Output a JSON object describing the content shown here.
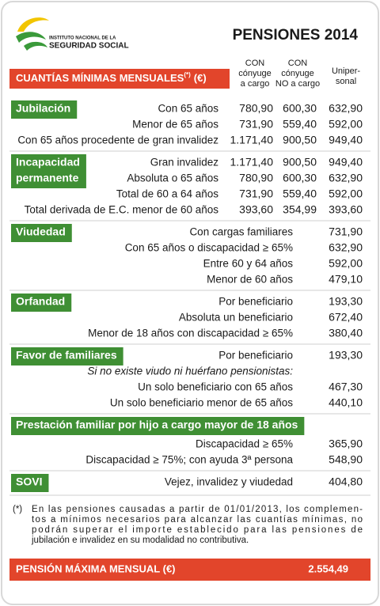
{
  "header": {
    "logo_line1": "INSTITUTO NACIONAL DE LA",
    "logo_line2": "SEGURIDAD SOCIAL",
    "title": "PENSIONES 2014"
  },
  "table_header": {
    "label": "CUANTÍAS MÍNIMAS MENSUALES",
    "note_ref": "(*)",
    "unit": "(€)",
    "columns": [
      [
        "CON",
        "cónyuge",
        "a cargo"
      ],
      [
        "CON",
        "cónyuge",
        "NO a cargo"
      ],
      [
        "Uniper-",
        "sonal"
      ]
    ]
  },
  "sections": [
    {
      "title": [
        "Jubilación"
      ],
      "rows": [
        {
          "label": "Con 65 años",
          "values": [
            "780,90",
            "600,30",
            "632,90"
          ]
        },
        {
          "label": "Menor de 65 años",
          "values": [
            "731,90",
            "559,40",
            "592,00"
          ]
        },
        {
          "label": "Con 65 años procedente de gran invalidez",
          "values": [
            "1.171,40",
            "900,50",
            "949,40"
          ]
        }
      ]
    },
    {
      "title": [
        "Incapacidad",
        "permanente"
      ],
      "rows": [
        {
          "label": "Gran invalidez",
          "values": [
            "1.171,40",
            "900,50",
            "949,40"
          ]
        },
        {
          "label": "Absoluta o 65 años",
          "values": [
            "780,90",
            "600,30",
            "632,90"
          ]
        },
        {
          "label": "Total de 60 a 64 años",
          "values": [
            "731,90",
            "559,40",
            "592,00"
          ]
        },
        {
          "label": "Total derivada de E.C. menor de 60 años",
          "values": [
            "393,60",
            "354,99",
            "393,60"
          ]
        }
      ]
    },
    {
      "title": [
        "Viudedad"
      ],
      "rows": [
        {
          "label": "Con cargas familiares",
          "values": [
            "731,90"
          ]
        },
        {
          "label": "Con 65 años o discapacidad ≥ 65%",
          "values": [
            "632,90"
          ]
        },
        {
          "label": "Entre 60 y 64 años",
          "values": [
            "592,00"
          ]
        },
        {
          "label": "Menor de 60 años",
          "values": [
            "479,10"
          ]
        }
      ]
    },
    {
      "title": [
        "Orfandad"
      ],
      "rows": [
        {
          "label": "Por beneficiario",
          "values": [
            "193,30"
          ]
        },
        {
          "label": "Absoluta un beneficiario",
          "values": [
            "672,40"
          ]
        },
        {
          "label": "Menor de 18 años con discapacidad ≥ 65%",
          "values": [
            "380,40"
          ]
        }
      ]
    },
    {
      "title": [
        "Favor de familiares"
      ],
      "rows": [
        {
          "label": "Por beneficiario",
          "values": [
            "193,30"
          ]
        },
        {
          "label": "Si no existe viudo ni huérfano pensionistas:",
          "values": []
        },
        {
          "label": "Un solo beneficiario con 65 años",
          "values": [
            "467,30"
          ]
        },
        {
          "label": "Un solo beneficiario menor de 65 años",
          "values": [
            "440,10"
          ]
        }
      ]
    },
    {
      "title": [
        "Prestación familiar por hijo a cargo mayor de 18 años"
      ],
      "rows": [
        {
          "label": "Discapacidad ≥ 65%",
          "values": [
            "365,90"
          ]
        },
        {
          "label": "Discapacidad ≥ 75%; con ayuda 3ª persona",
          "values": [
            "548,90"
          ]
        }
      ]
    },
    {
      "title": [
        "SOVI"
      ],
      "rows": [
        {
          "label": "Vejez, invalidez y viudedad",
          "values": [
            "404,80"
          ]
        }
      ]
    }
  ],
  "footnote": {
    "marker": "(*)",
    "lines": [
      "En las pensiones causadas a partir de 01/01/2013, los complemen-",
      "tos a mínimos necesarios para alcanzar las cuantías mínimas, no",
      "podrán superar el importe establecido para las pensiones de",
      "jubilación e invalidez en su modalidad no contributiva."
    ]
  },
  "footer": {
    "label": "PENSIÓN MÁXIMA MENSUAL (€)",
    "value": "2.554,49"
  }
}
